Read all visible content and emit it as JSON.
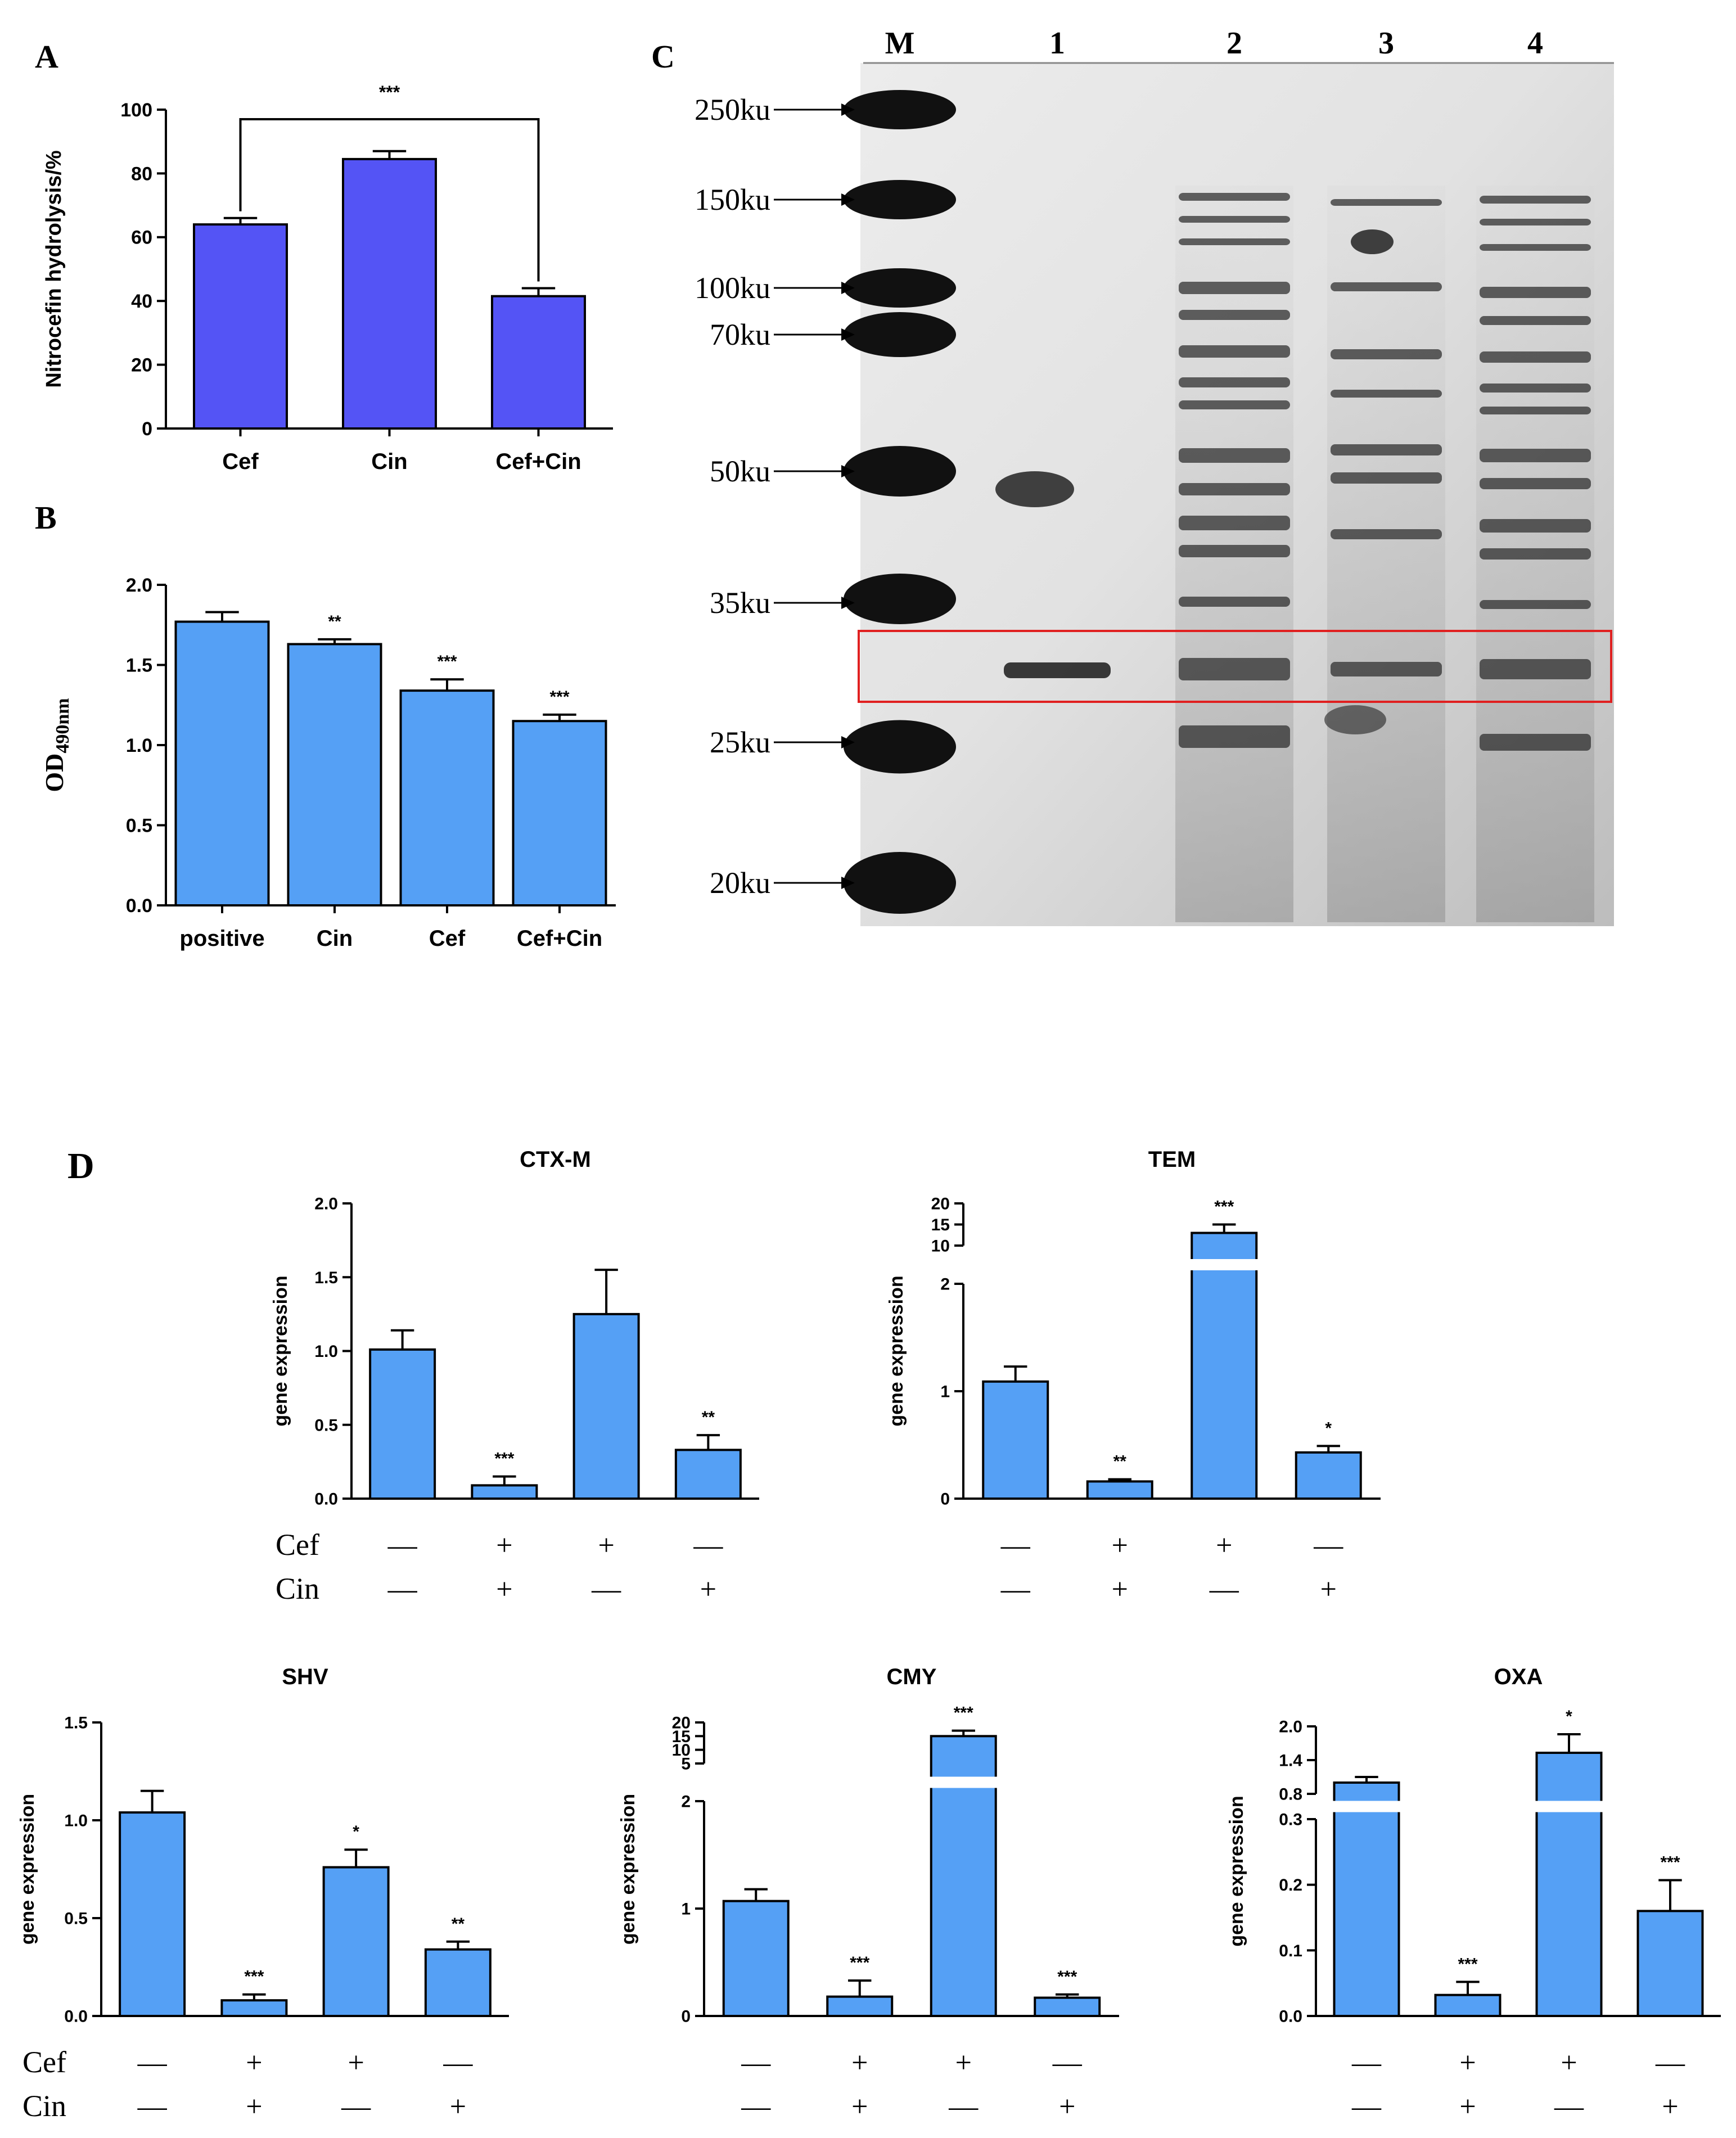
{
  "panel_labels": {
    "A": "A",
    "B": "B",
    "C": "C",
    "D": "D"
  },
  "colors": {
    "panel_a_bar": "#5454f5",
    "bar": "#55a0f5",
    "gel_box": "#e02020"
  },
  "treat_rows": {
    "cef_label": "Cef",
    "cin_label": "Cin",
    "minus": "—",
    "plus": "+"
  },
  "gel": {
    "lanes": [
      "M",
      "1",
      "2",
      "3",
      "4"
    ],
    "markers": [
      "250ku",
      "150ku",
      "100ku",
      "70ku",
      "50ku",
      "35ku",
      "25ku",
      "20ku"
    ]
  },
  "chart_data": [
    {
      "id": "A",
      "type": "bar",
      "categories": [
        "Cef",
        "Cin",
        "Cef+Cin"
      ],
      "values": [
        64,
        84.5,
        41.5
      ],
      "errors": [
        2,
        2.5,
        2.5
      ],
      "ylabel": "Nitrocefin hydrolysis/%",
      "ylim": [
        0,
        100
      ],
      "yticks": [
        "0",
        "20",
        "40",
        "60",
        "80",
        "100"
      ],
      "bracket": {
        "label": "***",
        "from": "Cef",
        "to": "Cef+Cin"
      }
    },
    {
      "id": "B",
      "type": "bar",
      "categories": [
        "positive",
        "Cin",
        "Cef",
        "Cef+Cin"
      ],
      "values": [
        1.77,
        1.63,
        1.34,
        1.15
      ],
      "errors": [
        0.06,
        0.03,
        0.07,
        0.04
      ],
      "significance": [
        "",
        "**",
        "***",
        "***"
      ],
      "ylabel": "OD",
      "ylabel_sub": "490nm",
      "ylim": [
        0,
        2.0
      ],
      "yticks": [
        "0.0",
        "0.5",
        "1.0",
        "1.5",
        "2.0"
      ]
    },
    {
      "id": "CTX-M",
      "type": "bar",
      "title": "CTX-M",
      "cef": [
        "—",
        "+",
        "+",
        "—"
      ],
      "cin": [
        "—",
        "+",
        "—",
        "+"
      ],
      "values": [
        1.01,
        0.09,
        1.25,
        0.33
      ],
      "errors": [
        0.13,
        0.06,
        0.3,
        0.1
      ],
      "significance": [
        "",
        "***",
        "",
        "**"
      ],
      "ylabel": "gene expression",
      "ylim": [
        0,
        2.0
      ],
      "yticks": [
        "0.0",
        "0.5",
        "1.0",
        "1.5",
        "2.0"
      ]
    },
    {
      "id": "TEM",
      "type": "bar",
      "title": "TEM",
      "cef": [
        "—",
        "+",
        "+",
        "—"
      ],
      "cin": [
        "—",
        "+",
        "—",
        "+"
      ],
      "values": [
        1.09,
        0.16,
        13,
        0.43
      ],
      "errors": [
        0.14,
        0.02,
        2,
        0.06
      ],
      "significance": [
        "",
        "**",
        "***",
        "*"
      ],
      "ylabel": "gene expression",
      "ylim": [
        0,
        20
      ],
      "axis_break": [
        2,
        10
      ],
      "yticks": [
        "0",
        "1",
        "2",
        "10",
        "15",
        "20"
      ]
    },
    {
      "id": "SHV",
      "type": "bar",
      "title": "SHV",
      "cef": [
        "—",
        "+",
        "+",
        "—"
      ],
      "cin": [
        "—",
        "+",
        "—",
        "+"
      ],
      "values": [
        1.04,
        0.08,
        0.76,
        0.34
      ],
      "errors": [
        0.11,
        0.03,
        0.09,
        0.04
      ],
      "significance": [
        "",
        "***",
        "*",
        "**"
      ],
      "ylabel": "gene expression",
      "ylim": [
        0,
        1.5
      ],
      "yticks": [
        "0.0",
        "0.5",
        "1.0",
        "1.5"
      ]
    },
    {
      "id": "CMY",
      "type": "bar",
      "title": "CMY",
      "cef": [
        "—",
        "+",
        "+",
        "—"
      ],
      "cin": [
        "—",
        "+",
        "—",
        "+"
      ],
      "values": [
        1.07,
        0.18,
        15,
        0.17
      ],
      "errors": [
        0.11,
        0.15,
        2,
        0.03
      ],
      "significance": [
        "",
        "***",
        "***",
        "***"
      ],
      "ylabel": "gene expression",
      "ylim": [
        0,
        20
      ],
      "axis_break": [
        2,
        5
      ],
      "yticks": [
        "0",
        "1",
        "2",
        "5",
        "10",
        "15",
        "20"
      ]
    },
    {
      "id": "OXA",
      "type": "bar",
      "title": "OXA",
      "cef": [
        "—",
        "+",
        "+",
        "—"
      ],
      "cin": [
        "—",
        "+",
        "—",
        "+"
      ],
      "values": [
        1.0,
        0.032,
        1.53,
        0.16
      ],
      "errors": [
        0.1,
        0.02,
        0.33,
        0.047
      ],
      "significance": [
        "",
        "***",
        "*",
        "***"
      ],
      "ylabel": "gene expression",
      "ylim": [
        0,
        2.0
      ],
      "axis_break": [
        0.3,
        0.8
      ],
      "yticks": [
        "0.0",
        "0.1",
        "0.2",
        "0.3",
        "0.8",
        "1.4",
        "2.0"
      ]
    }
  ]
}
